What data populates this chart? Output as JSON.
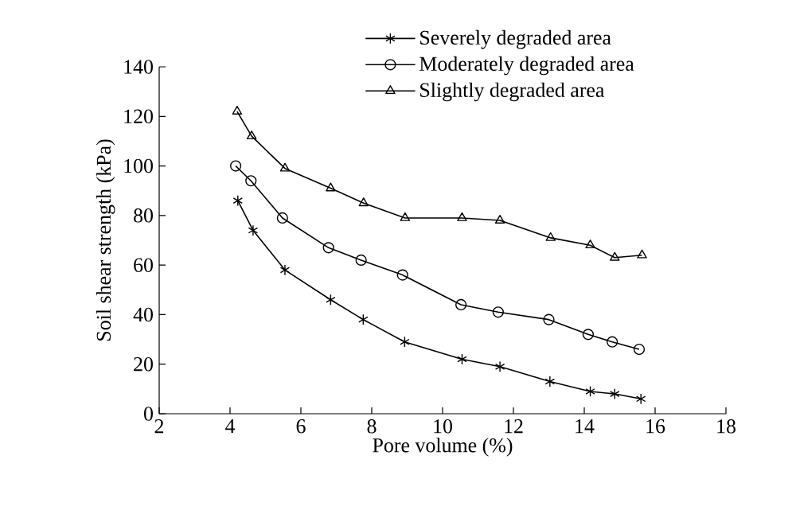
{
  "chart_data": {
    "type": "line",
    "xlabel": "Pore volume (%)",
    "ylabel": "Soil shear strength (kPa)",
    "xlim": [
      2,
      18
    ],
    "xticks": [
      2,
      4,
      6,
      8,
      10,
      12,
      14,
      16,
      18
    ],
    "ylim": [
      0,
      140
    ],
    "yticks": [
      0,
      20,
      40,
      60,
      80,
      100,
      120,
      140
    ],
    "grid": false,
    "legend": "top",
    "line_style": "solid",
    "series": [
      {
        "name": "Severely degraded area",
        "color": "#000000",
        "marker": "cross",
        "x": [
          4.22,
          4.65,
          5.55,
          6.84,
          7.76,
          8.93,
          10.55,
          11.62,
          13.03,
          14.17,
          14.86,
          15.6
        ],
        "values": [
          86,
          74,
          58,
          46,
          38,
          29,
          22,
          19,
          13,
          9,
          8,
          6
        ]
      },
      {
        "name": "Moderately degraded area",
        "color": "#000000",
        "marker": "circle",
        "x": [
          4.16,
          4.59,
          5.48,
          6.78,
          7.7,
          8.87,
          10.52,
          11.57,
          13.0,
          14.11,
          14.79,
          15.55
        ],
        "values": [
          100,
          94,
          79,
          67,
          62,
          56,
          44,
          41,
          38,
          32,
          29,
          26
        ]
      },
      {
        "name": "Slightly degraded area",
        "color": "#000000",
        "marker": "triangle",
        "x": [
          4.2,
          4.61,
          5.55,
          6.84,
          7.77,
          8.94,
          10.55,
          11.62,
          13.05,
          14.17,
          14.86,
          15.63
        ],
        "values": [
          122,
          112,
          99,
          91,
          85,
          79,
          79,
          78,
          71,
          68,
          63,
          64
        ]
      }
    ]
  }
}
